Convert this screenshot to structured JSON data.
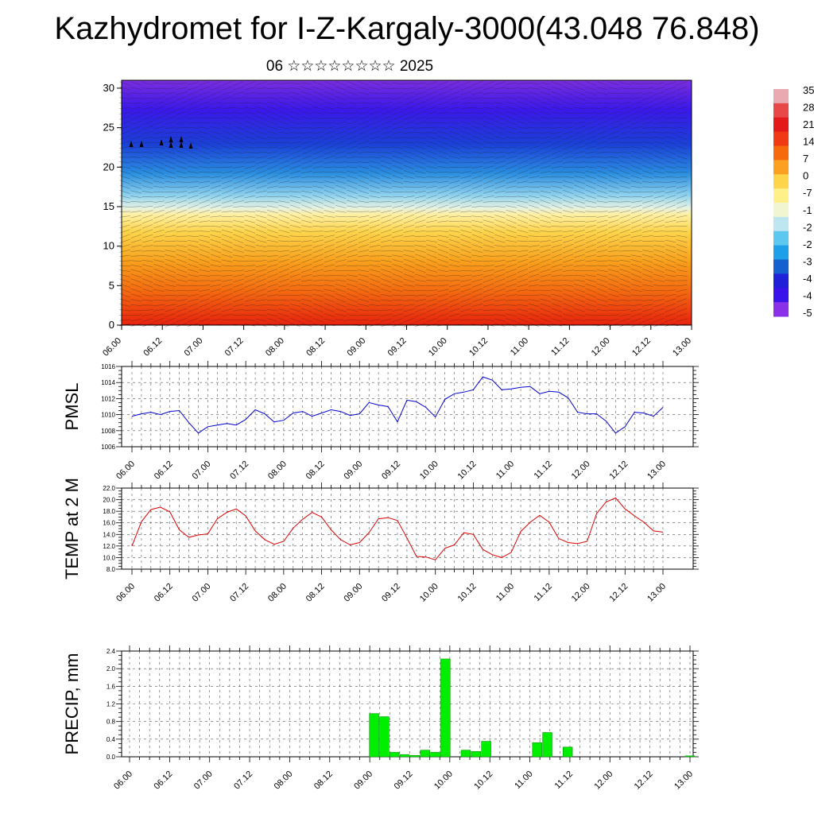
{
  "page": {
    "title": "Kazhydromet for I-Z-Kargaly-3000(43.048 76.848)",
    "subtitle": "06 ☆☆☆☆☆☆☆☆ 2025"
  },
  "colors": {
    "pmsl_line": "#0000cc",
    "temp_line": "#dd0000",
    "precip_bar": "#00ee00",
    "precip_edge": "#009900",
    "colorbar": [
      "#eaa8b0",
      "#e84848",
      "#e41a1a",
      "#ef3a14",
      "#f66a0c",
      "#fba020",
      "#fdd44a",
      "#fff08a",
      "#f2f6d0",
      "#bde6f0",
      "#5cc8f0",
      "#1ea0e8",
      "#1460d0",
      "#2020d8",
      "#3a12ea",
      "#8a30e8"
    ]
  },
  "chart_data": [
    {
      "type": "heatmap",
      "name": "upper-air-cross-section",
      "xlabel": "",
      "ylabel": "",
      "x_ticks": [
        "06.00",
        "06.12",
        "07.00",
        "07.12",
        "08.00",
        "08.12",
        "09.00",
        "09.12",
        "10.00",
        "10.12",
        "11.00",
        "11.12",
        "12.00",
        "12.12",
        "13.00"
      ],
      "y_ticks": [
        "0",
        "5",
        "10",
        "15",
        "20",
        "25",
        "30"
      ],
      "ylim": [
        0,
        31
      ],
      "colorbar_labels": [
        "35",
        "28",
        "21",
        "14",
        "7",
        "0",
        "-7",
        "-1",
        "-2",
        "-2",
        "-3",
        "-4",
        "-4",
        "-5"
      ],
      "overlay": "wind barbs",
      "note_marks": [
        "arrow",
        "arrow",
        "arrow",
        "arrow",
        "arrow",
        "arrow",
        "arrow",
        "arrow"
      ]
    },
    {
      "type": "line",
      "name": "pmsl",
      "ylabel": "PMSL",
      "ylim": [
        1006,
        1016
      ],
      "y_ticks": [
        "1006",
        "1008",
        "1010",
        "1012",
        "1014",
        "1016"
      ],
      "x_ticks": [
        "06.00",
        "06.12",
        "07.00",
        "07.12",
        "08.00",
        "08.12",
        "09.00",
        "09.12",
        "10.00",
        "10.12",
        "11.00",
        "11.12",
        "12.00",
        "12.12",
        "13.00"
      ],
      "values": [
        1009.8,
        1010.1,
        1010.3,
        1010.0,
        1010.4,
        1010.5,
        1009.0,
        1007.7,
        1008.5,
        1008.7,
        1008.9,
        1008.7,
        1009.4,
        1010.6,
        1010.1,
        1009.1,
        1009.3,
        1010.2,
        1010.4,
        1009.8,
        1010.2,
        1010.6,
        1010.4,
        1009.9,
        1010.1,
        1011.5,
        1011.2,
        1011.0,
        1009.1,
        1011.8,
        1011.6,
        1010.9,
        1009.7,
        1011.9,
        1012.6,
        1012.8,
        1013.1,
        1014.7,
        1014.3,
        1013.1,
        1013.2,
        1013.4,
        1013.5,
        1012.6,
        1012.9,
        1012.8,
        1012.1,
        1010.3,
        1010.1,
        1010.1,
        1009.2,
        1007.7,
        1008.5,
        1010.3,
        1010.2,
        1009.8,
        1010.9
      ]
    },
    {
      "type": "line",
      "name": "temp-2m",
      "ylabel": "TEMP at 2 M",
      "ylim": [
        8,
        22
      ],
      "y_ticks": [
        "8.0",
        "10.0",
        "12.0",
        "14.0",
        "16.0",
        "18.0",
        "20.0",
        "22.0"
      ],
      "x_ticks": [
        "06.00",
        "06.12",
        "07.00",
        "07.12",
        "08.00",
        "08.12",
        "09.00",
        "09.12",
        "10.00",
        "10.12",
        "11.00",
        "11.12",
        "12.00",
        "12.12",
        "13.00"
      ],
      "values": [
        12.0,
        16.2,
        18.3,
        18.7,
        17.9,
        14.8,
        13.5,
        13.9,
        14.1,
        16.7,
        17.8,
        18.4,
        17.2,
        14.6,
        13.1,
        12.3,
        12.8,
        15.1,
        16.6,
        17.8,
        17.0,
        14.8,
        13.1,
        12.2,
        12.6,
        14.3,
        16.7,
        16.9,
        16.4,
        13.4,
        10.2,
        10.1,
        9.6,
        11.6,
        12.2,
        14.3,
        14.0,
        11.4,
        10.5,
        10.0,
        10.9,
        14.5,
        16.1,
        17.3,
        16.1,
        13.3,
        12.6,
        12.4,
        12.8,
        17.6,
        19.6,
        20.3,
        18.4,
        17.2,
        16.1,
        14.6,
        14.4
      ]
    },
    {
      "type": "bar",
      "name": "precip",
      "ylabel": "PRECIP, mm",
      "ylim": [
        0,
        2.4
      ],
      "y_ticks": [
        "0.0",
        "0.4",
        "0.8",
        "1.2",
        "1.6",
        "2.0",
        "2.4"
      ],
      "x_ticks": [
        "06.00",
        "06.12",
        "07.00",
        "07.12",
        "08.00",
        "08.12",
        "09.00",
        "09.12",
        "10.00",
        "10.12",
        "11.00",
        "11.12",
        "12.00",
        "12.12",
        "13.00"
      ],
      "values": [
        0,
        0,
        0,
        0,
        0,
        0,
        0,
        0,
        0,
        0,
        0,
        0,
        0,
        0,
        0,
        0,
        0,
        0,
        0,
        0,
        0,
        0,
        0,
        0,
        0.98,
        0.91,
        0.1,
        0.05,
        0.03,
        0.15,
        0.1,
        2.22,
        0,
        0.15,
        0.12,
        0.35,
        0,
        0,
        0,
        0,
        0.32,
        0.55,
        0,
        0.22,
        0,
        0,
        0,
        0,
        0,
        0,
        0,
        0,
        0,
        0,
        0,
        0.02
      ]
    }
  ]
}
